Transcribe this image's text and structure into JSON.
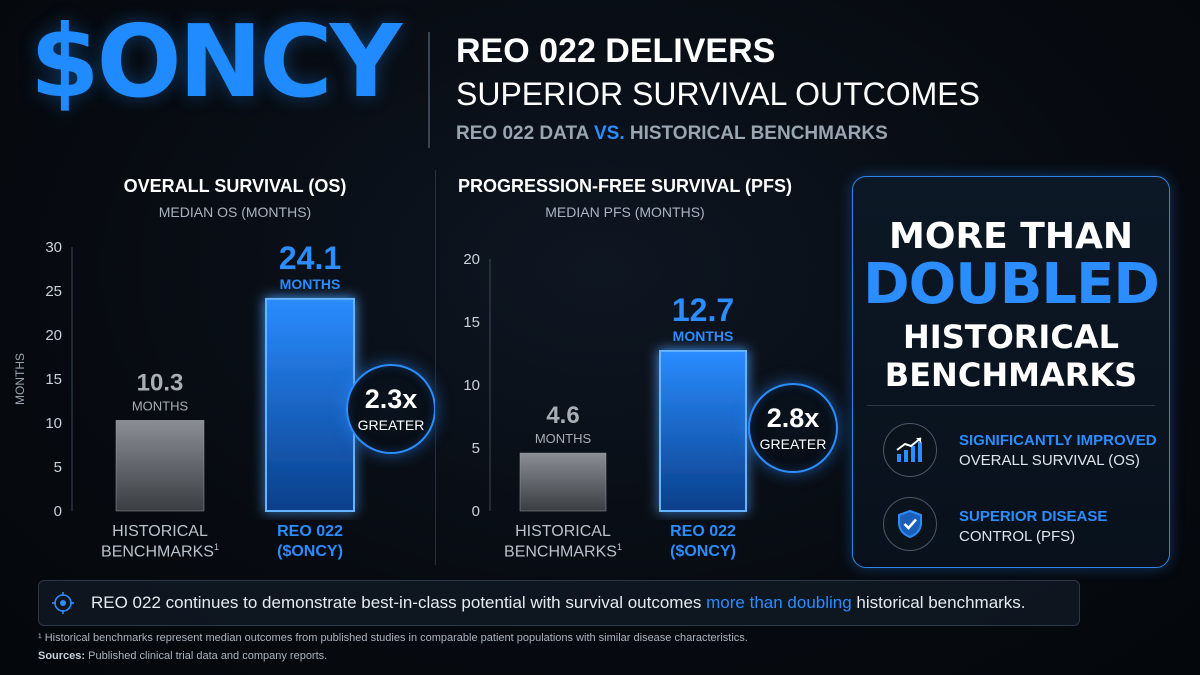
{
  "header": {
    "ticker": "$ONCY",
    "title": "REO 022 DELIVERS",
    "subtitle": "SUPERIOR SURVIVAL OUTCOMES",
    "bench_part1": "REO 022 DATA",
    "bench_vs": "VS.",
    "bench_part2": "HISTORICAL BENCHMARKS"
  },
  "colors": {
    "accent": "#2b8dff",
    "historical_bar": "#6a6e74",
    "background": "#070b11"
  },
  "os_chart": {
    "ratio_value": "2.3x",
    "ratio_label": "GREATER",
    "cat1_line1": "HISTORICAL",
    "cat1_line2": "BENCHMARKS",
    "cat1_sup": "1",
    "cat2_line1": "REO 022",
    "cat2_line2": "($ONCY)"
  },
  "pfs_chart": {
    "ratio_value": "2.8x",
    "ratio_label": "GREATER",
    "cat1_line1": "HISTORICAL",
    "cat1_line2": "BENCHMARKS",
    "cat1_sup": "1",
    "cat2_line1": "REO 022",
    "cat2_line2": "($ONCY)"
  },
  "chart_data": [
    {
      "type": "bar",
      "title": "OVERALL SURVIVAL (OS)",
      "subtitle": "MEDIAN OS (MONTHS)",
      "ylabel": "MONTHS",
      "xlabel": "",
      "ylim": [
        0,
        30
      ],
      "yticks": [
        0,
        5,
        10,
        15,
        20,
        25,
        30
      ],
      "categories": [
        "HISTORICAL BENCHMARKS¹",
        "REO 022 ($ONCY)"
      ],
      "values": [
        10.3,
        24.1
      ],
      "value_labels": [
        "10.3",
        "24.1"
      ],
      "unit_label": "MONTHS",
      "grid": false
    },
    {
      "type": "bar",
      "title": "PROGRESSION-FREE SURVIVAL (PFS)",
      "subtitle": "MEDIAN PFS (MONTHS)",
      "ylabel": "",
      "xlabel": "",
      "ylim": [
        0,
        20
      ],
      "yticks": [
        0,
        5,
        10,
        15,
        20
      ],
      "categories": [
        "HISTORICAL BENCHMARKS¹",
        "REO 022 ($ONCY)"
      ],
      "values": [
        4.6,
        12.7
      ],
      "value_labels": [
        "4.6",
        "12.7"
      ],
      "unit_label": "MONTHS",
      "grid": false
    }
  ],
  "panel": {
    "line1": "MORE THAN",
    "line2": "DOUBLED",
    "line3": "HISTORICAL",
    "line4": "BENCHMARKS",
    "features": [
      {
        "icon": "bar-chart-trend-icon",
        "highlight": "SIGNIFICANTLY IMPROVED",
        "text": "OVERALL SURVIVAL (OS)"
      },
      {
        "icon": "shield-check-icon",
        "highlight": "SUPERIOR DISEASE",
        "text": "CONTROL (PFS)"
      }
    ]
  },
  "bottom": {
    "text_part1": "REO 022 continues to demonstrate best-in-class potential with survival outcomes ",
    "text_highlight": "more than doubling",
    "text_part2": " historical benchmarks."
  },
  "footnotes": {
    "note1": "¹ Historical benchmarks represent median outcomes from published studies in comparable patient populations with similar disease characteristics.",
    "sources_label": "Sources:",
    "sources_text": " Published clinical trial data and company reports."
  }
}
